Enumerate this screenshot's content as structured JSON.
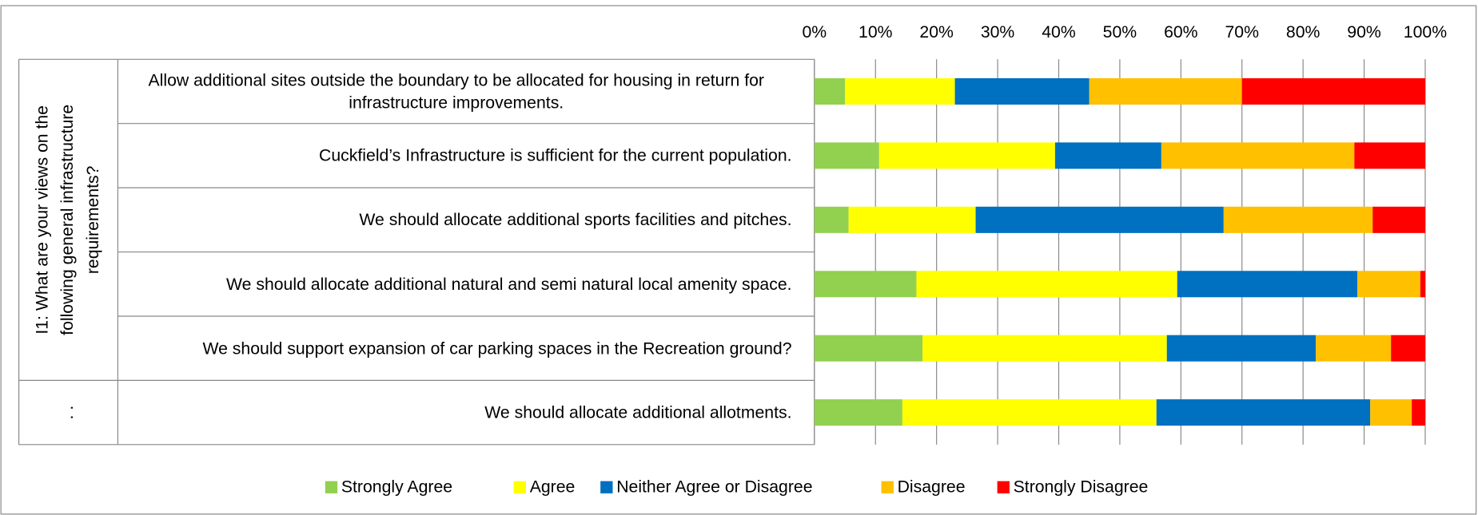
{
  "chart_data": {
    "type": "stacked_barh_percent",
    "categories": [
      "Allow additional sites outside the boundary to be allocated for housing in return for infrastructure improvements.",
      "Cuckfield’s Infrastructure is sufficient for the current population.",
      "We should allocate additional sports facilities and pitches.",
      "We should allocate additional natural and semi natural local amenity space.",
      "We should support expansion of car parking spaces in the Recreation ground?",
      "We should allocate additional allotments."
    ],
    "category_groups": [
      {
        "label_lines": [
          "I1: What are your views on the",
          "following general infrastructure",
          "requirements?"
        ],
        "size": 5
      },
      {
        "label_lines": [
          ". ."
        ],
        "size": 1
      }
    ],
    "series": [
      {
        "name": "Strongly Agree",
        "color": "#92d050",
        "values": [
          5,
          10.6,
          5.6,
          16.7,
          17.7,
          14.4
        ]
      },
      {
        "name": "Agree",
        "color": "#ffff00",
        "values": [
          18,
          28.8,
          20.8,
          42.7,
          40,
          41.6
        ]
      },
      {
        "name": "Neither Agree or Disagree",
        "color": "#0070c0",
        "values": [
          22,
          17.4,
          40.6,
          29.5,
          24.4,
          35
        ]
      },
      {
        "name": "Disagree",
        "color": "#ffc000",
        "values": [
          25,
          31.6,
          24.4,
          10.3,
          12.3,
          6.8
        ]
      },
      {
        "name": "Strongly Disagree",
        "color": "#ff0000",
        "values": [
          30,
          11.6,
          8.6,
          0.8,
          5.6,
          2.2
        ]
      }
    ],
    "xlim": [
      0,
      100
    ],
    "xticks": [
      {
        "value": 0,
        "label": "0%"
      },
      {
        "value": 10,
        "label": "10%"
      },
      {
        "value": 20,
        "label": "20%"
      },
      {
        "value": 30,
        "label": "30%"
      },
      {
        "value": 40,
        "label": "40%"
      },
      {
        "value": 50,
        "label": "50%"
      },
      {
        "value": 60,
        "label": "60%"
      },
      {
        "value": 70,
        "label": "70%"
      },
      {
        "value": 80,
        "label": "80%"
      },
      {
        "value": 90,
        "label": "90%"
      },
      {
        "value": 100,
        "label": "100%"
      }
    ],
    "grid": true,
    "legend": "bottom"
  }
}
